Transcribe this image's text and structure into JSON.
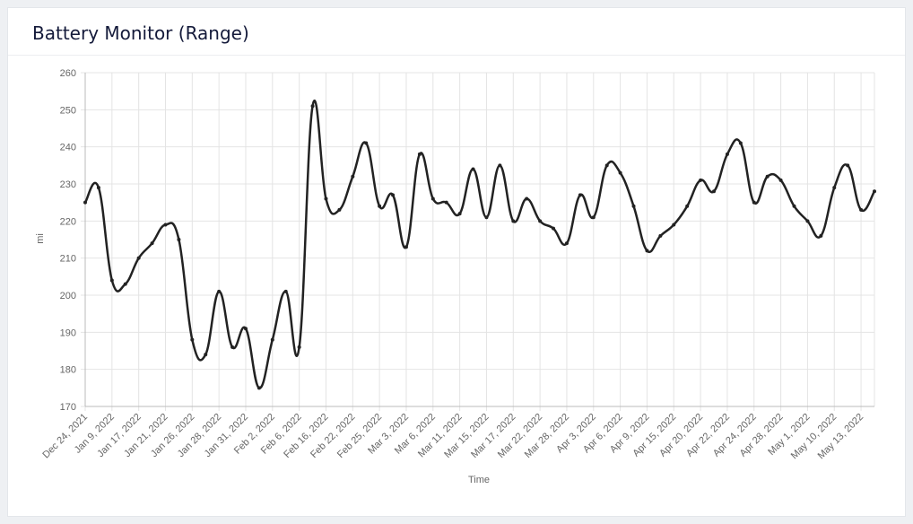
{
  "chart_data": {
    "type": "line",
    "title": "Battery Monitor (Range)",
    "x_label": "Time",
    "y_label": "mi",
    "categories": [
      "Dec 24, 2021",
      null,
      "Jan 9, 2022",
      null,
      "Jan 17, 2022",
      null,
      "Jan 21, 2022",
      null,
      "Jan 26, 2022",
      null,
      "Jan 28, 2022",
      null,
      "Jan 31, 2022",
      null,
      "Feb 2, 2022",
      null,
      "Feb 6, 2022",
      null,
      "Feb 16, 2022",
      null,
      "Feb 22, 2022",
      null,
      "Feb 25, 2022",
      null,
      "Mar 3, 2022",
      null,
      "Mar 6, 2022",
      null,
      "Mar 11, 2022",
      null,
      "Mar 15, 2022",
      null,
      "Mar 17, 2022",
      null,
      "Mar 22, 2022",
      null,
      "Mar 28, 2022",
      null,
      "Apr 3, 2022",
      null,
      "Apr 6, 2022",
      null,
      "Apr 9, 2022",
      null,
      "Apr 15, 2022",
      null,
      "Apr 20, 2022",
      null,
      "Apr 22, 2022",
      null,
      "Apr 24, 2022",
      null,
      "Apr 28, 2022",
      null,
      "May 1, 2022",
      null,
      "May 10, 2022",
      null,
      "May 13, 2022",
      null
    ],
    "values": [
      225,
      229,
      204,
      203,
      210,
      214,
      219,
      215,
      188,
      184,
      201,
      186,
      191,
      175,
      188,
      201,
      186,
      251,
      226,
      223,
      232,
      241,
      224,
      227,
      213,
      238,
      226,
      225,
      222,
      234,
      221,
      235,
      220,
      226,
      220,
      218,
      214,
      227,
      221,
      235,
      233,
      224,
      212,
      216,
      219,
      224,
      231,
      228,
      238,
      241,
      225,
      232,
      231,
      224,
      220,
      216,
      229,
      235,
      223,
      228
    ],
    "color": "#222222",
    "ylim": [
      170,
      260
    ],
    "yticks": [
      170,
      180,
      190,
      200,
      210,
      220,
      230,
      240,
      250,
      260
    ],
    "grid": true
  }
}
